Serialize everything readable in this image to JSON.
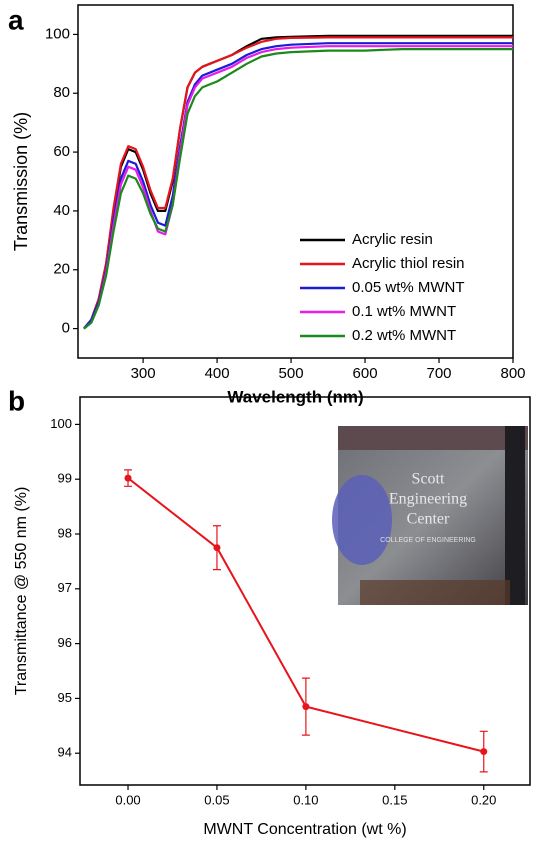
{
  "chart_data": [
    {
      "type": "line",
      "panel_label": "a",
      "x_label": "Wavelength (nm)",
      "y_label": "Transmission (%)",
      "x": [
        220,
        230,
        240,
        250,
        260,
        270,
        280,
        290,
        300,
        310,
        320,
        330,
        340,
        350,
        360,
        370,
        380,
        390,
        400,
        420,
        440,
        460,
        480,
        500,
        550,
        600,
        650,
        700,
        750,
        800
      ],
      "series": [
        {
          "name": "Acrylic resin",
          "color": "#000000",
          "values": [
            0,
            3,
            10,
            22,
            40,
            55,
            61,
            60,
            54,
            46,
            40,
            40,
            50,
            68,
            82,
            87,
            89,
            90,
            91,
            93,
            96,
            98.5,
            99,
            99.2,
            99.5,
            99.5,
            99.5,
            99.5,
            99.5,
            99.5
          ]
        },
        {
          "name": "Acrylic thiol resin",
          "color": "#e8141c",
          "values": [
            0,
            3,
            10,
            22,
            41,
            56,
            62,
            61,
            55,
            47,
            41,
            41,
            51,
            68,
            82,
            87,
            89,
            90,
            91,
            93,
            95.5,
            97.5,
            98.5,
            98.8,
            99,
            99,
            99,
            99,
            99,
            99
          ]
        },
        {
          "name": "0.05 wt% MWNT",
          "color": "#1c1cd8",
          "values": [
            0,
            3,
            9,
            20,
            37,
            51,
            57,
            56,
            50,
            42,
            36,
            35,
            45,
            62,
            77,
            83,
            86,
            87,
            88,
            90,
            93,
            95,
            96,
            96.5,
            97,
            97,
            97,
            97,
            97,
            97
          ]
        },
        {
          "name": "0.1 wt% MWNT",
          "color": "#e81ce8",
          "values": [
            0,
            2,
            8,
            19,
            35,
            49,
            55,
            54,
            48,
            40,
            33,
            32,
            42,
            60,
            76,
            82,
            85,
            86,
            87,
            89,
            92,
            94,
            95,
            95.5,
            96,
            96,
            96,
            96,
            96,
            96
          ]
        },
        {
          "name": "0.2 wt% MWNT",
          "color": "#1a8a1a",
          "values": [
            0,
            2,
            8,
            18,
            33,
            46,
            52,
            51,
            46,
            39,
            34,
            33,
            42,
            58,
            73,
            79,
            82,
            83,
            84,
            87,
            90,
            92.5,
            93.5,
            94,
            94.5,
            94.5,
            95,
            95,
            95,
            95
          ]
        }
      ],
      "xlim": [
        212,
        800
      ],
      "ylim": [
        -10,
        110
      ],
      "xticks": [
        300,
        400,
        500,
        600,
        700,
        800
      ],
      "yticks": [
        0,
        20,
        40,
        60,
        80,
        100
      ],
      "legend": "lower right"
    },
    {
      "type": "errorbar",
      "panel_label": "b",
      "x_label": "MWNT Concentration (wt %)",
      "y_label": "Transmittance @ 550 nm (%)",
      "x": [
        0,
        0.05,
        0.1,
        0.2
      ],
      "values": [
        99.02,
        97.75,
        94.85,
        94.03
      ],
      "errors": [
        0.15,
        0.4,
        0.52,
        0.37
      ],
      "color": "#e8141c",
      "xlim": [
        -0.027,
        0.226
      ],
      "ylim": [
        93.42,
        100.5
      ],
      "xticks": [
        {
          "value": 0,
          "label": "0.00"
        },
        {
          "value": 0.05,
          "label": "0.05"
        },
        {
          "value": 0.1,
          "label": "0.10"
        },
        {
          "value": 0.15,
          "label": "0.15"
        },
        {
          "value": 0.2,
          "label": "0.20"
        }
      ],
      "yticks": [
        94,
        95,
        96,
        97,
        98,
        99,
        100
      ],
      "inset_text": [
        "Scott",
        "Engineering",
        "Center",
        "COLLEGE OF ENGINEERING"
      ]
    }
  ]
}
